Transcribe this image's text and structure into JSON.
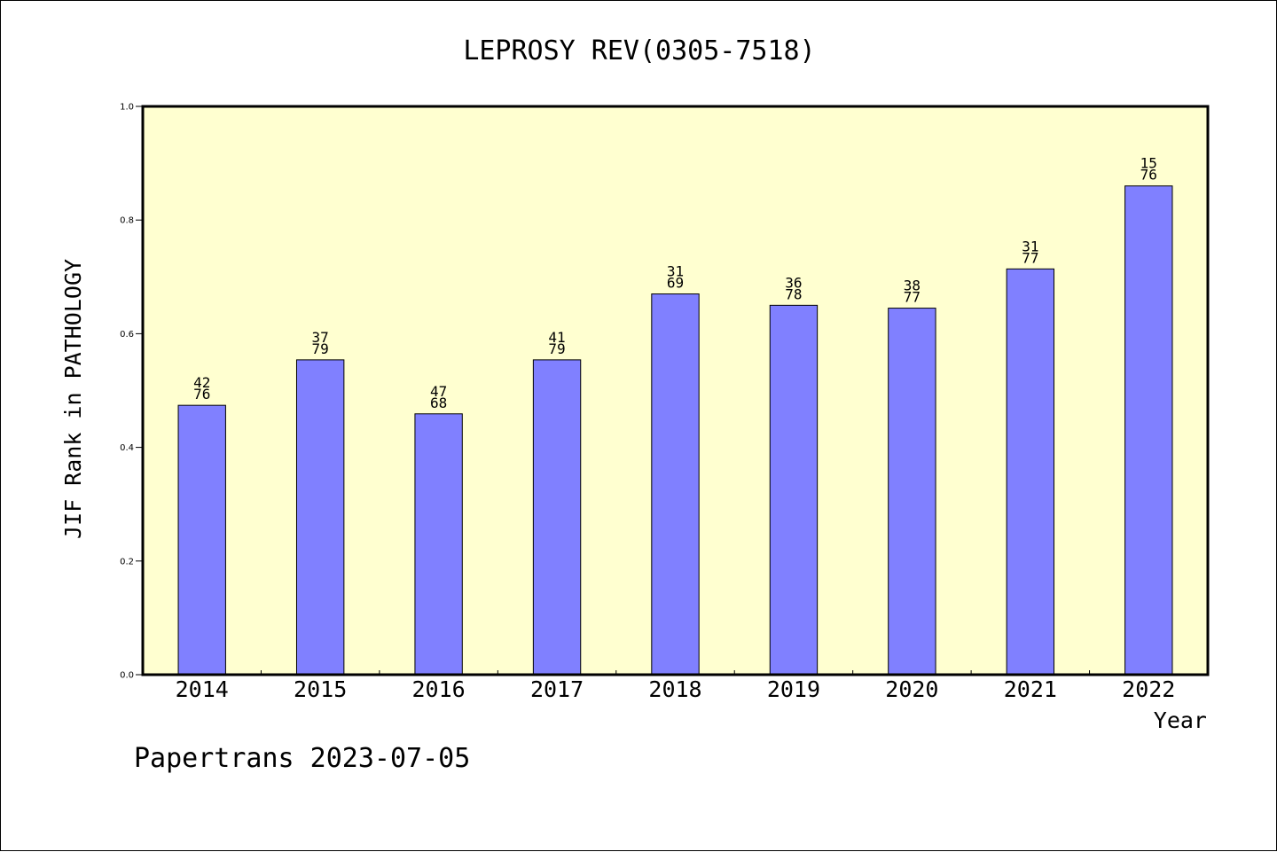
{
  "chart_data": {
    "type": "bar",
    "title": "LEPROSY REV(0305-7518)",
    "xlabel": "Year",
    "ylabel": "JIF Rank in PATHOLOGY",
    "ylim": [
      0,
      1.0
    ],
    "yticks": [
      "0.0",
      "0.2",
      "0.4",
      "0.6",
      "0.8",
      "1.0"
    ],
    "grid": false,
    "categories": [
      "2014",
      "2015",
      "2016",
      "2017",
      "2018",
      "2019",
      "2020",
      "2021",
      "2022"
    ],
    "values": [
      0.474,
      0.554,
      0.459,
      0.554,
      0.67,
      0.65,
      0.645,
      0.714,
      0.86
    ],
    "rank": [
      "42",
      "37",
      "47",
      "41",
      "31",
      "36",
      "38",
      "31",
      "15"
    ],
    "total": [
      "76",
      "79",
      "68",
      "79",
      "69",
      "78",
      "77",
      "77",
      "76"
    ],
    "colors": {
      "bar": "#8080ff",
      "plot_background": "#ffffd0",
      "bar_edge": "#000000"
    }
  },
  "footer": "Papertrans 2023-07-05"
}
